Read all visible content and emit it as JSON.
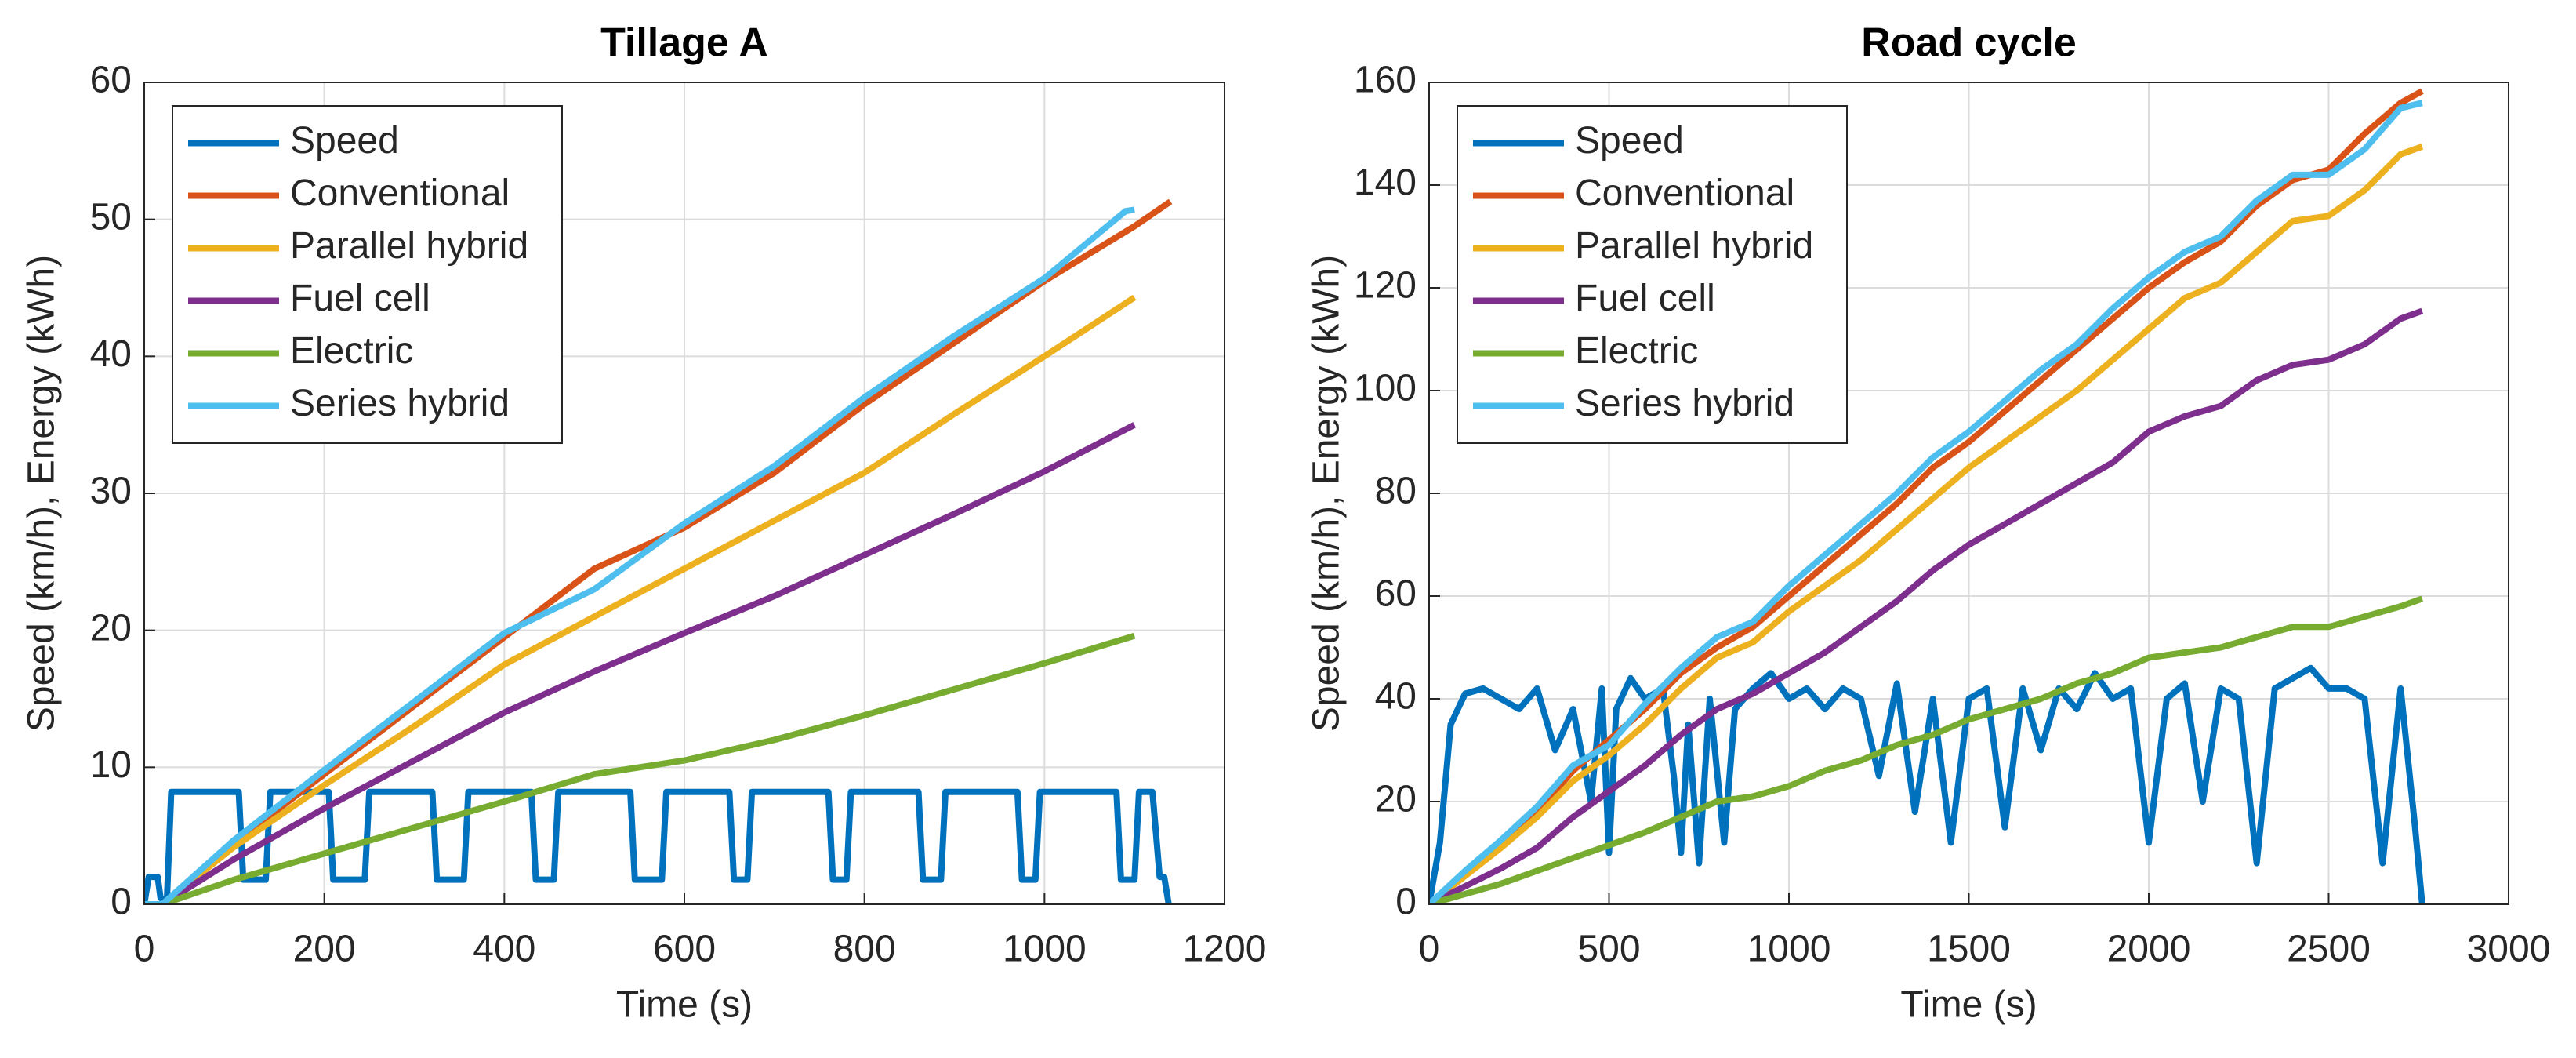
{
  "chart_data": [
    {
      "type": "line",
      "title": "Tillage A",
      "xlabel": "Time (s)",
      "ylabel": "Speed (km/h), Energy (kWh)",
      "xlim": [
        0,
        1200
      ],
      "xticks": [
        0,
        200,
        400,
        600,
        800,
        1000,
        1200
      ],
      "ylim": [
        0,
        60
      ],
      "yticks": [
        0,
        10,
        20,
        30,
        40,
        50,
        60
      ],
      "grid": true,
      "legend": "northwest",
      "series": [
        {
          "name": "Speed",
          "color": "#0072BD",
          "x": [
            0,
            5,
            15,
            18,
            25,
            30,
            105,
            110,
            135,
            140,
            205,
            210,
            245,
            250,
            320,
            325,
            355,
            360,
            430,
            435,
            455,
            460,
            540,
            545,
            575,
            580,
            650,
            655,
            670,
            675,
            760,
            765,
            780,
            785,
            860,
            865,
            885,
            890,
            970,
            975,
            990,
            995,
            1080,
            1085,
            1100,
            1105,
            1120,
            1128,
            1133,
            1138
          ],
          "values": [
            0,
            2,
            2,
            0.5,
            0,
            8.2,
            8.2,
            1.8,
            1.8,
            8.2,
            8.2,
            1.8,
            1.8,
            8.2,
            8.2,
            1.8,
            1.8,
            8.2,
            8.2,
            1.8,
            1.8,
            8.2,
            8.2,
            1.8,
            1.8,
            8.2,
            8.2,
            1.8,
            1.8,
            8.2,
            8.2,
            1.8,
            1.8,
            8.2,
            8.2,
            1.8,
            1.8,
            8.2,
            8.2,
            1.8,
            1.8,
            8.2,
            8.2,
            1.8,
            1.8,
            8.2,
            8.2,
            2,
            2,
            0
          ]
        },
        {
          "name": "Conventional",
          "color": "#D95319",
          "x": [
            0,
            20,
            100,
            200,
            300,
            400,
            500,
            600,
            700,
            800,
            900,
            1000,
            1100,
            1140
          ],
          "values": [
            0,
            0,
            4.5,
            9.5,
            14.5,
            19.5,
            24.5,
            27.5,
            31.5,
            36.5,
            41,
            45.5,
            49.5,
            51.3
          ]
        },
        {
          "name": "Parallel hybrid",
          "color": "#EDB120",
          "x": [
            0,
            20,
            100,
            200,
            300,
            400,
            500,
            600,
            700,
            800,
            900,
            1000,
            1100
          ],
          "values": [
            0,
            0,
            4.2,
            8.7,
            13,
            17.5,
            21,
            24.5,
            28,
            31.5,
            35.8,
            40,
            44.3
          ]
        },
        {
          "name": "Fuel cell",
          "color": "#7E2F8E",
          "x": [
            0,
            20,
            100,
            200,
            300,
            400,
            500,
            600,
            700,
            800,
            900,
            1000,
            1100
          ],
          "values": [
            0,
            0,
            3.3,
            7,
            10.5,
            14,
            17,
            19.8,
            22.5,
            25.5,
            28.5,
            31.6,
            35
          ]
        },
        {
          "name": "Electric",
          "color": "#77AC30",
          "x": [
            0,
            20,
            100,
            200,
            300,
            400,
            500,
            600,
            700,
            800,
            900,
            1000,
            1100
          ],
          "values": [
            0,
            0,
            1.8,
            3.7,
            5.6,
            7.5,
            9.5,
            10.5,
            12,
            13.8,
            15.7,
            17.6,
            19.6
          ]
        },
        {
          "name": "Series hybrid",
          "color": "#4DBEEE",
          "x": [
            0,
            20,
            100,
            200,
            300,
            400,
            500,
            600,
            700,
            800,
            900,
            1000,
            1090,
            1100
          ],
          "values": [
            0,
            0,
            4.7,
            9.8,
            14.8,
            19.8,
            23,
            27.8,
            32,
            37,
            41.5,
            45.7,
            50.6,
            50.7
          ]
        }
      ]
    },
    {
      "type": "line",
      "title": "Road cycle",
      "xlabel": "Time (s)",
      "ylabel": "Speed (km/h), Energy (kWh)",
      "xlim": [
        0,
        3000
      ],
      "xticks": [
        0,
        500,
        1000,
        1500,
        2000,
        2500,
        3000
      ],
      "ylim": [
        0,
        160
      ],
      "yticks": [
        0,
        20,
        40,
        60,
        80,
        100,
        120,
        140,
        160
      ],
      "grid": true,
      "legend": "northwest",
      "series": [
        {
          "name": "Speed",
          "color": "#0072BD",
          "x": [
            0,
            30,
            60,
            100,
            150,
            200,
            250,
            300,
            350,
            400,
            450,
            480,
            500,
            520,
            560,
            600,
            650,
            680,
            700,
            720,
            750,
            780,
            820,
            850,
            900,
            950,
            1000,
            1050,
            1100,
            1150,
            1200,
            1250,
            1300,
            1350,
            1400,
            1450,
            1500,
            1550,
            1600,
            1650,
            1700,
            1750,
            1800,
            1850,
            1900,
            1950,
            2000,
            2050,
            2100,
            2150,
            2200,
            2250,
            2300,
            2350,
            2400,
            2450,
            2500,
            2550,
            2600,
            2650,
            2700,
            2740,
            2760
          ],
          "values": [
            0,
            12,
            35,
            41,
            42,
            40,
            38,
            42,
            30,
            38,
            20,
            42,
            10,
            38,
            44,
            40,
            42,
            25,
            10,
            35,
            8,
            40,
            12,
            38,
            42,
            45,
            40,
            42,
            38,
            42,
            40,
            25,
            43,
            18,
            40,
            12,
            40,
            42,
            15,
            42,
            30,
            42,
            38,
            45,
            40,
            42,
            12,
            40,
            43,
            20,
            42,
            40,
            8,
            42,
            44,
            46,
            42,
            42,
            40,
            8,
            42,
            15,
            0
          ]
        },
        {
          "name": "Conventional",
          "color": "#D95319",
          "x": [
            0,
            100,
            200,
            300,
            400,
            500,
            600,
            700,
            800,
            900,
            1000,
            1100,
            1200,
            1300,
            1400,
            1500,
            1600,
            1700,
            1800,
            1900,
            2000,
            2100,
            2200,
            2300,
            2400,
            2500,
            2600,
            2700,
            2760
          ],
          "values": [
            0,
            6,
            12,
            18,
            26,
            32,
            38,
            45,
            50,
            54,
            60,
            66,
            72,
            78,
            85,
            90,
            96,
            102,
            108,
            114,
            120,
            125,
            129,
            136,
            141,
            143,
            150,
            156,
            158.3
          ]
        },
        {
          "name": "Parallel hybrid",
          "color": "#EDB120",
          "x": [
            0,
            100,
            200,
            300,
            400,
            500,
            600,
            700,
            800,
            900,
            1000,
            1100,
            1200,
            1300,
            1400,
            1500,
            1600,
            1700,
            1800,
            1900,
            2000,
            2100,
            2200,
            2300,
            2400,
            2500,
            2600,
            2700,
            2760
          ],
          "values": [
            0,
            5.5,
            11,
            17,
            24,
            29,
            35,
            42,
            48,
            51,
            57,
            62,
            67,
            73,
            79,
            85,
            90,
            95,
            100,
            106,
            112,
            118,
            121,
            127,
            133,
            134,
            139,
            146,
            147.5
          ]
        },
        {
          "name": "Fuel cell",
          "color": "#7E2F8E",
          "x": [
            0,
            100,
            200,
            300,
            400,
            500,
            600,
            700,
            800,
            900,
            1000,
            1100,
            1200,
            1300,
            1400,
            1500,
            1600,
            1700,
            1800,
            1900,
            2000,
            2100,
            2200,
            2300,
            2400,
            2500,
            2600,
            2700,
            2760
          ],
          "values": [
            0,
            3.5,
            7,
            11,
            17,
            22,
            27,
            33,
            38,
            41,
            45,
            49,
            54,
            59,
            65,
            70,
            74,
            78,
            82,
            86,
            92,
            95,
            97,
            102,
            105,
            106,
            109,
            114,
            115.5
          ]
        },
        {
          "name": "Electric",
          "color": "#77AC30",
          "x": [
            0,
            100,
            200,
            300,
            400,
            500,
            600,
            700,
            800,
            900,
            1000,
            1100,
            1200,
            1300,
            1400,
            1500,
            1600,
            1700,
            1800,
            1900,
            2000,
            2100,
            2200,
            2300,
            2400,
            2500,
            2600,
            2700,
            2760
          ],
          "values": [
            0,
            2,
            4,
            6.5,
            9,
            11.5,
            14,
            17,
            20,
            21,
            23,
            26,
            28,
            31,
            33,
            36,
            38,
            40,
            43,
            45,
            48,
            49,
            50,
            52,
            54,
            54,
            56,
            58,
            59.5
          ]
        },
        {
          "name": "Series hybrid",
          "color": "#4DBEEE",
          "x": [
            0,
            100,
            200,
            300,
            400,
            500,
            600,
            700,
            800,
            900,
            1000,
            1100,
            1200,
            1300,
            1400,
            1500,
            1600,
            1700,
            1800,
            1900,
            2000,
            2100,
            2200,
            2300,
            2400,
            2500,
            2600,
            2700,
            2760
          ],
          "values": [
            0,
            6.5,
            12.5,
            19,
            27,
            31,
            39,
            46,
            52,
            55,
            62,
            68,
            74,
            80,
            87,
            92,
            98,
            104,
            109,
            116,
            122,
            127,
            130,
            137,
            142,
            142,
            147,
            155,
            156
          ]
        }
      ]
    }
  ]
}
